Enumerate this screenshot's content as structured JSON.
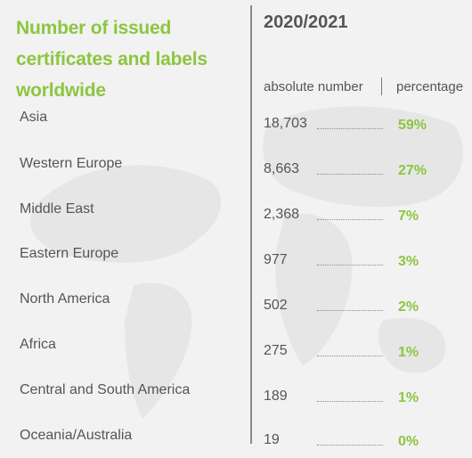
{
  "title_lines": [
    "Number of issued",
    "certificates and labels",
    "worldwide"
  ],
  "year": "2020/2021",
  "column_headers": {
    "absolute": "absolute number",
    "percentage": "percentage"
  },
  "colors": {
    "accent_green": "#8cc63f",
    "text_gray": "#555555",
    "background": "#f2f2f2"
  },
  "rows": [
    {
      "region": "Asia",
      "absolute": "18,703",
      "percentage": "59%"
    },
    {
      "region": "Western Europe",
      "absolute": "8,663",
      "percentage": "27%"
    },
    {
      "region": "Middle East",
      "absolute": "2,368",
      "percentage": "7%"
    },
    {
      "region": "Eastern Europe",
      "absolute": "977",
      "percentage": "3%"
    },
    {
      "region": "North America",
      "absolute": "502",
      "percentage": "2%"
    },
    {
      "region": "Africa",
      "absolute": "275",
      "percentage": "1%"
    },
    {
      "region": "Central and South America",
      "absolute": "189",
      "percentage": "1%"
    },
    {
      "region": "Oceania/Australia",
      "absolute": "19",
      "percentage": "0%"
    }
  ],
  "chart_data": {
    "type": "table",
    "title": "Number of issued certificates and labels worldwide",
    "columns": [
      "absolute number",
      "percentage"
    ],
    "categories": [
      "Asia",
      "Western Europe",
      "Middle East",
      "Eastern Europe",
      "North America",
      "Africa",
      "Central and South America",
      "Oceania/Australia"
    ],
    "series": [
      {
        "name": "absolute number",
        "values": [
          18703,
          8663,
          2368,
          977,
          502,
          275,
          189,
          19
        ]
      },
      {
        "name": "percentage",
        "values": [
          59,
          27,
          7,
          3,
          2,
          1,
          1,
          0
        ]
      }
    ]
  }
}
